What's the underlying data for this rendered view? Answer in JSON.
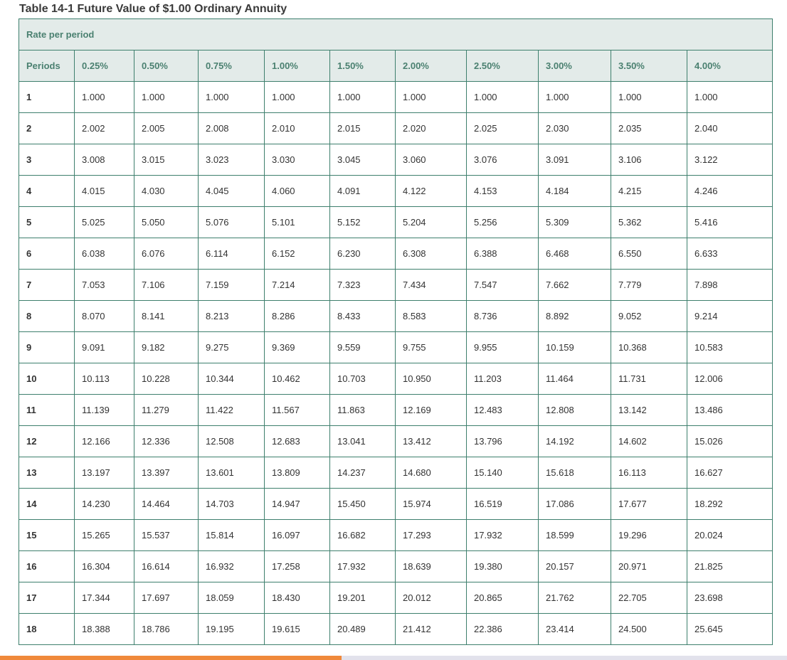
{
  "title": "Table 14-1 Future Value of $1.00 Ordinary Annuity",
  "rate_header": "Rate per period",
  "columns": [
    "Periods",
    "0.25%",
    "0.50%",
    "0.75%",
    "1.00%",
    "1.50%",
    "2.00%",
    "2.50%",
    "3.00%",
    "3.50%",
    "4.00%"
  ],
  "rows": [
    [
      "1",
      "1.000",
      "1.000",
      "1.000",
      "1.000",
      "1.000",
      "1.000",
      "1.000",
      "1.000",
      "1.000",
      "1.000"
    ],
    [
      "2",
      "2.002",
      "2.005",
      "2.008",
      "2.010",
      "2.015",
      "2.020",
      "2.025",
      "2.030",
      "2.035",
      "2.040"
    ],
    [
      "3",
      "3.008",
      "3.015",
      "3.023",
      "3.030",
      "3.045",
      "3.060",
      "3.076",
      "3.091",
      "3.106",
      "3.122"
    ],
    [
      "4",
      "4.015",
      "4.030",
      "4.045",
      "4.060",
      "4.091",
      "4.122",
      "4.153",
      "4.184",
      "4.215",
      "4.246"
    ],
    [
      "5",
      "5.025",
      "5.050",
      "5.076",
      "5.101",
      "5.152",
      "5.204",
      "5.256",
      "5.309",
      "5.362",
      "5.416"
    ],
    [
      "6",
      "6.038",
      "6.076",
      "6.114",
      "6.152",
      "6.230",
      "6.308",
      "6.388",
      "6.468",
      "6.550",
      "6.633"
    ],
    [
      "7",
      "7.053",
      "7.106",
      "7.159",
      "7.214",
      "7.323",
      "7.434",
      "7.547",
      "7.662",
      "7.779",
      "7.898"
    ],
    [
      "8",
      "8.070",
      "8.141",
      "8.213",
      "8.286",
      "8.433",
      "8.583",
      "8.736",
      "8.892",
      "9.052",
      "9.214"
    ],
    [
      "9",
      "9.091",
      "9.182",
      "9.275",
      "9.369",
      "9.559",
      "9.755",
      "9.955",
      "10.159",
      "10.368",
      "10.583"
    ],
    [
      "10",
      "10.113",
      "10.228",
      "10.344",
      "10.462",
      "10.703",
      "10.950",
      "11.203",
      "11.464",
      "11.731",
      "12.006"
    ],
    [
      "11",
      "11.139",
      "11.279",
      "11.422",
      "11.567",
      "11.863",
      "12.169",
      "12.483",
      "12.808",
      "13.142",
      "13.486"
    ],
    [
      "12",
      "12.166",
      "12.336",
      "12.508",
      "12.683",
      "13.041",
      "13.412",
      "13.796",
      "14.192",
      "14.602",
      "15.026"
    ],
    [
      "13",
      "13.197",
      "13.397",
      "13.601",
      "13.809",
      "14.237",
      "14.680",
      "15.140",
      "15.618",
      "16.113",
      "16.627"
    ],
    [
      "14",
      "14.230",
      "14.464",
      "14.703",
      "14.947",
      "15.450",
      "15.974",
      "16.519",
      "17.086",
      "17.677",
      "18.292"
    ],
    [
      "15",
      "15.265",
      "15.537",
      "15.814",
      "16.097",
      "16.682",
      "17.293",
      "17.932",
      "18.599",
      "19.296",
      "20.024"
    ],
    [
      "16",
      "16.304",
      "16.614",
      "16.932",
      "17.258",
      "17.932",
      "18.639",
      "19.380",
      "20.157",
      "20.971",
      "21.825"
    ],
    [
      "17",
      "17.344",
      "17.697",
      "18.059",
      "18.430",
      "19.201",
      "20.012",
      "20.865",
      "21.762",
      "22.705",
      "23.698"
    ],
    [
      "18",
      "18.388",
      "18.786",
      "19.195",
      "19.615",
      "20.489",
      "21.412",
      "22.386",
      "23.414",
      "24.500",
      "25.645"
    ]
  ],
  "colors": {
    "border": "#3e7f6d",
    "header_bg": "#e3ebe9",
    "header_text": "#4a8070",
    "scroll_thumb": "#f0893a"
  },
  "scrollbar": {
    "position_fraction": 0.0,
    "visible_fraction": 0.43
  }
}
